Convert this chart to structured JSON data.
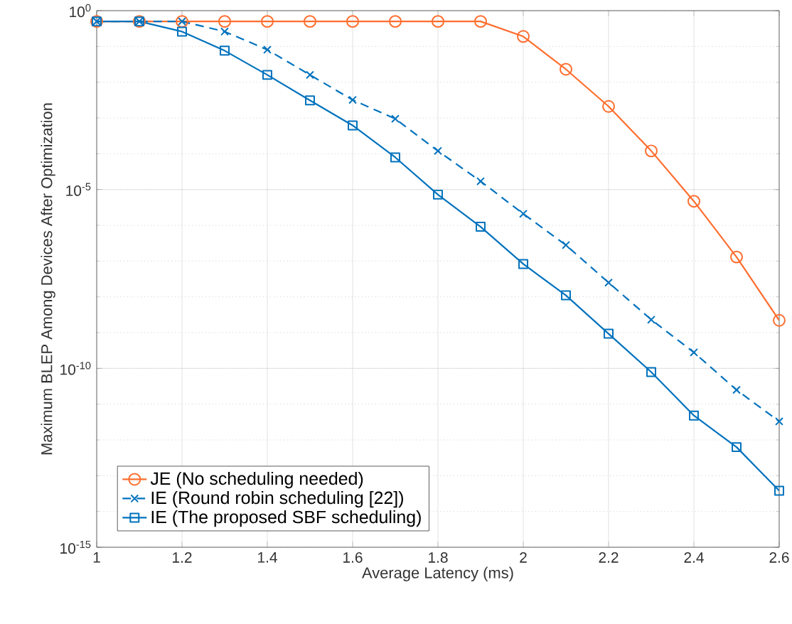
{
  "chart_data": {
    "type": "line",
    "xlabel": "Average Latency (ms)",
    "ylabel": "Maximum BLEP Among Devices After Optimization",
    "x": [
      1,
      1.1,
      1.2,
      1.3,
      1.4,
      1.5,
      1.6,
      1.7,
      1.8,
      1.9,
      2.0,
      2.1,
      2.2,
      2.3,
      2.4,
      2.5,
      2.6
    ],
    "series": [
      {
        "name": "JE (No scheduling needed)",
        "color": "#ff6d2e",
        "marker": "circle",
        "line_style": "solid",
        "values": [
          0.5,
          0.5,
          0.5,
          0.5,
          0.5,
          0.5,
          0.5,
          0.5,
          0.5,
          0.5,
          0.19,
          0.023,
          0.0021,
          0.00012,
          4.7e-06,
          1.3e-07,
          2.2e-09
        ]
      },
      {
        "name": "IE (Round robin scheduling [22])",
        "color": "#0072bd",
        "marker": "cross",
        "line_style": "dashed",
        "values": [
          0.5,
          0.5,
          0.5,
          0.26,
          0.081,
          0.016,
          0.0032,
          0.00095,
          0.00012,
          1.7e-05,
          2.1e-06,
          2.8e-07,
          2.5e-08,
          2.3e-09,
          2.8e-10,
          2.5e-11,
          3.3e-12
        ]
      },
      {
        "name": "IE (The proposed SBF scheduling)",
        "color": "#0072bd",
        "marker": "square",
        "line_style": "solid",
        "values": [
          0.5,
          0.5,
          0.26,
          0.076,
          0.016,
          0.0031,
          0.00062,
          7.9e-05,
          7.2e-06,
          9.1e-07,
          8.3e-08,
          1.1e-08,
          9.3e-10,
          7.9e-11,
          4.8e-12,
          6.3e-13,
          3.8e-14
        ]
      }
    ],
    "xlim": [
      1,
      2.6
    ],
    "xticks": [
      1,
      1.2,
      1.4,
      1.6,
      1.8,
      2,
      2.2,
      2.4,
      2.6
    ],
    "ylim": [
      1e-15,
      1
    ],
    "yticks": [
      {
        "value": 1e-15,
        "label": "10$^{-15}$"
      },
      {
        "value": 1e-10,
        "label": "10$^{-10}$"
      },
      {
        "value": 1e-05,
        "label": "10$^{-5}$"
      },
      {
        "value": 1,
        "label": "10$^{0}$"
      }
    ],
    "log": "y",
    "grid": true,
    "legend": "bottom left"
  }
}
